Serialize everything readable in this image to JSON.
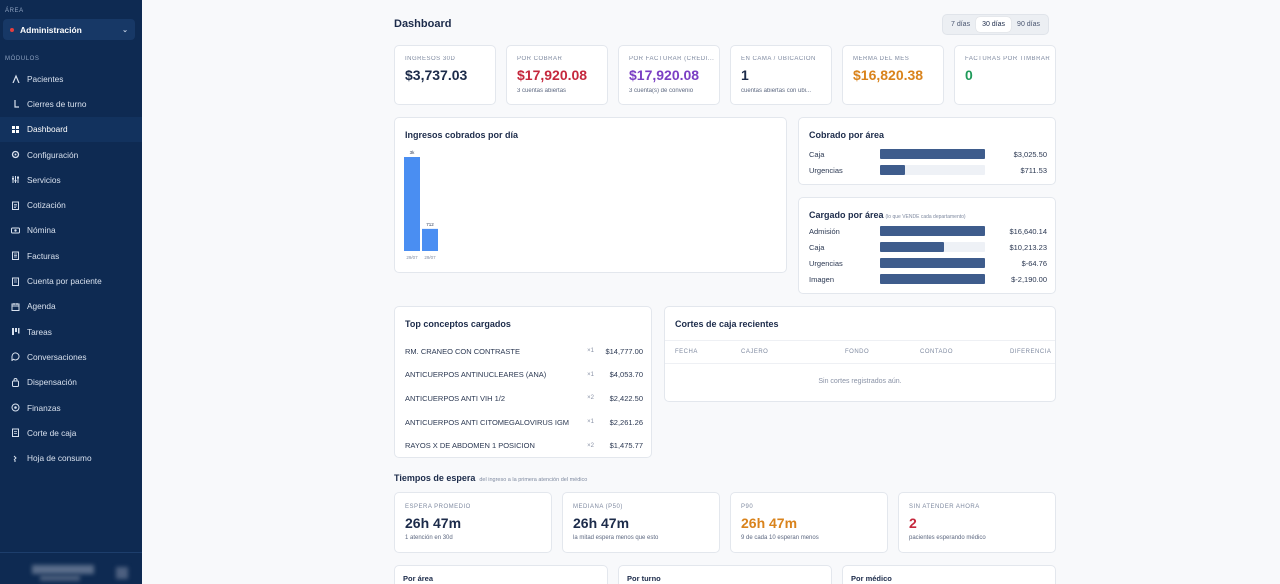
{
  "sidebar": {
    "area_label": "ÁREA",
    "area_value": "Administración",
    "modules_label": "MÓDULOS",
    "items": [
      {
        "label": "Pacientes",
        "icon": "users-icon"
      },
      {
        "label": "Cierres de turno",
        "icon": "moon-icon"
      },
      {
        "label": "Dashboard",
        "icon": "dashboard-icon"
      },
      {
        "label": "Configuración",
        "icon": "gear-icon"
      },
      {
        "label": "Servicios",
        "icon": "sliders-icon"
      },
      {
        "label": "Cotización",
        "icon": "document-icon"
      },
      {
        "label": "Nómina",
        "icon": "money-icon"
      },
      {
        "label": "Facturas",
        "icon": "invoice-icon"
      },
      {
        "label": "Cuenta por paciente",
        "icon": "receipt-icon"
      },
      {
        "label": "Agenda",
        "icon": "calendar-icon"
      },
      {
        "label": "Tareas",
        "icon": "kanban-icon"
      },
      {
        "label": "Conversaciones",
        "icon": "chat-icon"
      },
      {
        "label": "Dispensación",
        "icon": "bag-icon"
      },
      {
        "label": "Finanzas",
        "icon": "coin-icon"
      },
      {
        "label": "Corte de caja",
        "icon": "cashbox-icon"
      },
      {
        "label": "Hoja de consumo",
        "icon": "pill-icon"
      }
    ],
    "active_index": 2
  },
  "header": {
    "title": "Dashboard",
    "ranges": [
      "7 días",
      "30 días",
      "90 días"
    ],
    "selected_range": "30 días"
  },
  "kpis": [
    {
      "label": "INGRESOS 30D",
      "value": "$3,737.03",
      "sub": "",
      "color": "#1c2b4a"
    },
    {
      "label": "POR COBRAR",
      "value": "$17,920.08",
      "sub": "3 cuentas abiertas",
      "color": "#c5283d"
    },
    {
      "label": "POR FACTURAR (CRÉDI...",
      "value": "$17,920.08",
      "sub": "3 cuenta(s) de convenio",
      "color": "#7b3fc4"
    },
    {
      "label": "EN CAMA / UBICACIÓN",
      "value": "1",
      "sub": "cuentas abiertas con ubi...",
      "color": "#1c2b4a"
    },
    {
      "label": "MERMA DEL MES",
      "value": "$16,820.38",
      "sub": "",
      "color": "#d9831c"
    },
    {
      "label": "FACTURAS POR TIMBRAR",
      "value": "0",
      "sub": "",
      "color": "#1f9a5a"
    }
  ],
  "ingresos_chart": {
    "title": "Ingresos cobrados por día"
  },
  "chart_data": {
    "type": "bar",
    "categories": [
      "29/07",
      "29/07"
    ],
    "values": [
      3025,
      712
    ],
    "data_labels": [
      "3k",
      "712"
    ],
    "color": "#4a8ef2"
  },
  "cobrado": {
    "title": "Cobrado por área",
    "rows": [
      {
        "name": "Caja",
        "amount": "$3,025.50",
        "fraction": 1.0
      },
      {
        "name": "Urgencias",
        "amount": "$711.53",
        "fraction": 0.235
      }
    ]
  },
  "cargado": {
    "title": "Cargado por área",
    "subtitle": "(lo que VENDE cada departamento)",
    "rows": [
      {
        "name": "Admisión",
        "amount": "$16,640.14",
        "fraction": 1.0
      },
      {
        "name": "Caja",
        "amount": "$10,213.23",
        "fraction": 0.61
      },
      {
        "name": "Urgencias",
        "amount": "$-64.76",
        "fraction": 1.0
      },
      {
        "name": "Imagen",
        "amount": "$-2,190.00",
        "fraction": 1.0
      }
    ]
  },
  "top_conceptos": {
    "title": "Top conceptos cargados",
    "rows": [
      {
        "name": "RM. CRANEO CON CONTRASTE",
        "qty": "×1",
        "amount": "$14,777.00"
      },
      {
        "name": "ANTICUERPOS ANTINUCLEARES (ANA)",
        "qty": "×1",
        "amount": "$4,053.70"
      },
      {
        "name": "ANTICUERPOS ANTI VIH 1/2",
        "qty": "×2",
        "amount": "$2,422.50"
      },
      {
        "name": "ANTICUERPOS ANTI CITOMEGALOVIRUS IGM",
        "qty": "×1",
        "amount": "$2,261.26"
      },
      {
        "name": "RAYOS X DE ABDOMEN 1 POSICION",
        "qty": "×2",
        "amount": "$1,475.77"
      }
    ]
  },
  "cortes": {
    "title": "Cortes de caja recientes",
    "columns": [
      "FECHA",
      "CAJERO",
      "FONDO",
      "CONTADO",
      "DIFERENCIA"
    ],
    "empty": "Sin cortes registrados aún."
  },
  "tiempos": {
    "title": "Tiempos de espera",
    "subtitle": "del ingreso a la primera atención del médico",
    "cards": [
      {
        "label": "ESPERA PROMEDIO",
        "value": "26h 47m",
        "sub": "1 atención en 30d",
        "color": "#1c2b4a"
      },
      {
        "label": "MEDIANA (P50)",
        "value": "26h 47m",
        "sub": "la mitad espera menos que esto",
        "color": "#1c2b4a"
      },
      {
        "label": "P90",
        "value": "26h 47m",
        "sub": "9 de cada 10 esperan menos",
        "color": "#d9831c"
      },
      {
        "label": "SIN ATENDER AHORA",
        "value": "2",
        "sub": "pacientes esperando médico",
        "color": "#c5283d"
      }
    ]
  },
  "bottom": {
    "cards": [
      "Por área",
      "Por turno",
      "Por médico"
    ]
  }
}
